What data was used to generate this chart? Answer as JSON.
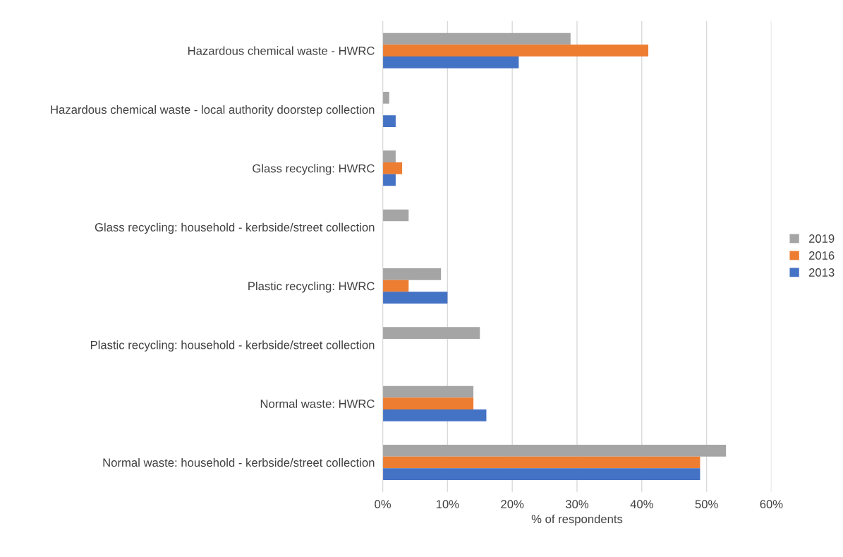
{
  "chart_data": {
    "type": "bar",
    "orientation": "horizontal",
    "xlabel": "% of respondents",
    "categories": [
      "Hazardous chemical waste - HWRC",
      "Hazardous chemical waste - local authority doorstep collection",
      "Glass recycling: HWRC",
      "Glass recycling: household - kerbside/street collection",
      "Plastic recycling: HWRC",
      "Plastic recycling: household - kerbside/street collection",
      "Normal waste: HWRC",
      "Normal waste: household - kerbside/street collection"
    ],
    "series": [
      {
        "name": "2019",
        "color": "#a5a5a5",
        "values": [
          29,
          1,
          2,
          4,
          9,
          15,
          14,
          53
        ]
      },
      {
        "name": "2016",
        "color": "#ed7d31",
        "values": [
          41,
          null,
          3,
          null,
          4,
          null,
          14,
          49
        ]
      },
      {
        "name": "2013",
        "color": "#4472c4",
        "values": [
          21,
          2,
          2,
          null,
          10,
          null,
          16,
          49
        ]
      }
    ],
    "xlim": [
      0,
      60
    ],
    "xticks": [
      {
        "value": 0,
        "label": "0%"
      },
      {
        "value": 10,
        "label": "10%"
      },
      {
        "value": 20,
        "label": "20%"
      },
      {
        "value": 30,
        "label": "30%"
      },
      {
        "value": 40,
        "label": "40%"
      },
      {
        "value": 50,
        "label": "50%"
      },
      {
        "value": 60,
        "label": "60%"
      }
    ],
    "grid": "x",
    "legend": "right"
  }
}
